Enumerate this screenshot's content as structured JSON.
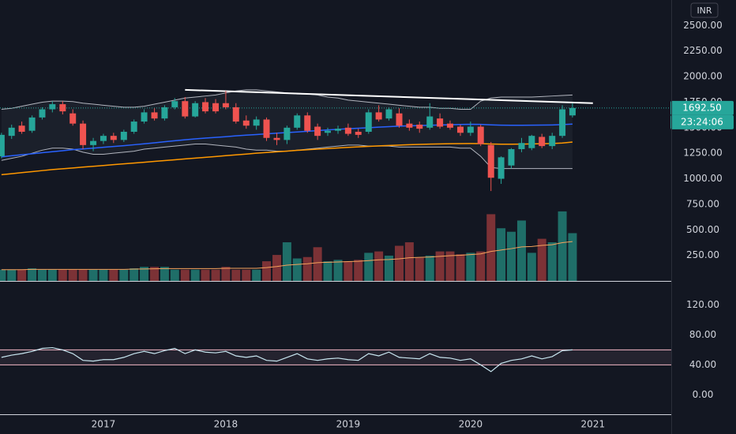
{
  "currency": "INR",
  "chart_data": [
    {
      "type": "candlestick",
      "x": [
        2016.167,
        2016.25,
        2016.333,
        2016.417,
        2016.5,
        2016.583,
        2016.667,
        2016.75,
        2016.833,
        2016.917,
        2017,
        2017.083,
        2017.167,
        2017.25,
        2017.333,
        2017.417,
        2017.5,
        2017.583,
        2017.667,
        2017.75,
        2017.833,
        2017.917,
        2018,
        2018.083,
        2018.167,
        2018.25,
        2018.333,
        2018.417,
        2018.5,
        2018.583,
        2018.667,
        2018.75,
        2018.833,
        2018.917,
        2019,
        2019.083,
        2019.167,
        2019.25,
        2019.333,
        2019.417,
        2019.5,
        2019.583,
        2019.667,
        2019.75,
        2019.833,
        2019.917,
        2020,
        2020.083,
        2020.167,
        2020.25,
        2020.333,
        2020.417,
        2020.5,
        2020.583,
        2020.667,
        2020.75,
        2020.833
      ],
      "open": [
        1220,
        1420,
        1520,
        1470,
        1600,
        1680,
        1730,
        1640,
        1540,
        1330,
        1370,
        1420,
        1380,
        1460,
        1560,
        1650,
        1590,
        1700,
        1760,
        1610,
        1750,
        1740,
        1740,
        1700,
        1570,
        1520,
        1580,
        1400,
        1380,
        1500,
        1620,
        1510,
        1450,
        1470,
        1500,
        1460,
        1460,
        1650,
        1590,
        1640,
        1540,
        1530,
        1500,
        1590,
        1540,
        1510,
        1450,
        1510,
        1330,
        1000,
        1130,
        1290,
        1300,
        1410,
        1320,
        1420,
        1620
      ],
      "high": [
        1450,
        1530,
        1560,
        1620,
        1700,
        1760,
        1760,
        1680,
        1570,
        1400,
        1440,
        1450,
        1480,
        1580,
        1680,
        1690,
        1720,
        1790,
        1800,
        1760,
        1790,
        1780,
        1860,
        1740,
        1620,
        1610,
        1600,
        1450,
        1520,
        1640,
        1650,
        1540,
        1500,
        1520,
        1540,
        1490,
        1680,
        1720,
        1700,
        1690,
        1580,
        1560,
        1740,
        1640,
        1570,
        1530,
        1560,
        1530,
        1360,
        1220,
        1300,
        1400,
        1430,
        1440,
        1450,
        1720,
        1740
      ],
      "low": [
        1200,
        1390,
        1440,
        1450,
        1580,
        1650,
        1630,
        1520,
        1290,
        1270,
        1340,
        1350,
        1360,
        1440,
        1540,
        1570,
        1570,
        1680,
        1590,
        1600,
        1640,
        1640,
        1680,
        1540,
        1490,
        1480,
        1370,
        1330,
        1340,
        1480,
        1450,
        1380,
        1420,
        1440,
        1420,
        1400,
        1440,
        1560,
        1570,
        1500,
        1470,
        1450,
        1480,
        1490,
        1480,
        1420,
        1420,
        1320,
        880,
        950,
        1100,
        1260,
        1280,
        1300,
        1290,
        1400,
        1600
      ],
      "close": [
        1430,
        1500,
        1460,
        1600,
        1680,
        1730,
        1660,
        1540,
        1330,
        1370,
        1420,
        1380,
        1460,
        1560,
        1650,
        1590,
        1700,
        1760,
        1610,
        1740,
        1660,
        1660,
        1700,
        1560,
        1520,
        1580,
        1400,
        1380,
        1500,
        1620,
        1470,
        1420,
        1470,
        1490,
        1440,
        1430,
        1650,
        1580,
        1680,
        1520,
        1500,
        1490,
        1610,
        1510,
        1500,
        1450,
        1510,
        1340,
        1010,
        1210,
        1290,
        1350,
        1420,
        1320,
        1420,
        1680,
        1692.5
      ],
      "volume": [
        16,
        16,
        16,
        18,
        16,
        16,
        16,
        16,
        16,
        16,
        16,
        16,
        16,
        18,
        20,
        20,
        20,
        16,
        16,
        16,
        16,
        16,
        20,
        16,
        16,
        16,
        28,
        37,
        55,
        32,
        34,
        48,
        28,
        30,
        28,
        30,
        40,
        42,
        36,
        50,
        55,
        33,
        36,
        42,
        42,
        38,
        40,
        42,
        95,
        75,
        70,
        86,
        40,
        60,
        55,
        99,
        68
      ],
      "volume_ylim": [
        0,
        400
      ],
      "volume_ma": {
        "color": "#f7a35c",
        "values": [
          16,
          16,
          16,
          16.5,
          16.5,
          16.5,
          16.5,
          16.5,
          16.5,
          16.5,
          16.5,
          16.5,
          16.5,
          16.8,
          17,
          17.3,
          17.6,
          17.6,
          17.6,
          17.6,
          17.6,
          17.6,
          18,
          18,
          18,
          18,
          19,
          20.5,
          22.5,
          23.5,
          24.5,
          26,
          26.5,
          27,
          27.5,
          28,
          29,
          30,
          30.5,
          31.5,
          33,
          33.5,
          34,
          35,
          36,
          36.5,
          37.5,
          38.5,
          42,
          44,
          46,
          48.5,
          49,
          50.5,
          51.5,
          54.5,
          56
        ]
      },
      "overlays": [
        {
          "color": "#2962ff",
          "values": [
            1215,
            1225,
            1235,
            1245,
            1255,
            1265,
            1275,
            1285,
            1292,
            1300,
            1308,
            1316,
            1324,
            1333,
            1342,
            1352,
            1362,
            1372,
            1382,
            1390,
            1398,
            1405,
            1412,
            1420,
            1427,
            1433,
            1440,
            1446,
            1452,
            1458,
            1465,
            1472,
            1478,
            1484,
            1490,
            1495,
            1500,
            1505,
            1510,
            1515,
            1518,
            1521,
            1524,
            1527,
            1529,
            1531,
            1533,
            1532,
            1528,
            1525,
            1524,
            1524,
            1525,
            1526,
            1527,
            1530,
            1535
          ]
        },
        {
          "color": "#ff9800",
          "values": [
            1040,
            1050,
            1060,
            1070,
            1080,
            1090,
            1098,
            1106,
            1114,
            1122,
            1130,
            1138,
            1146,
            1154,
            1162,
            1170,
            1178,
            1186,
            1194,
            1202,
            1210,
            1218,
            1226,
            1234,
            1242,
            1250,
            1257,
            1264,
            1271,
            1278,
            1284,
            1290,
            1296,
            1302,
            1307,
            1312,
            1317,
            1322,
            1326,
            1330,
            1333,
            1336,
            1339,
            1341,
            1343,
            1344,
            1345,
            1344,
            1340,
            1338,
            1338,
            1339,
            1341,
            1343,
            1345,
            1350,
            1360
          ]
        }
      ],
      "bands": {
        "color": "#b2b5be",
        "upper": [
          1680,
          1690,
          1710,
          1730,
          1750,
          1760,
          1760,
          1755,
          1740,
          1730,
          1720,
          1710,
          1700,
          1700,
          1710,
          1730,
          1750,
          1770,
          1790,
          1800,
          1810,
          1820,
          1840,
          1860,
          1870,
          1870,
          1860,
          1850,
          1840,
          1830,
          1830,
          1820,
          1800,
          1790,
          1770,
          1760,
          1750,
          1740,
          1730,
          1720,
          1710,
          1700,
          1700,
          1690,
          1690,
          1680,
          1680,
          1760,
          1790,
          1800,
          1800,
          1800,
          1800,
          1805,
          1810,
          1815,
          1820
        ],
        "lower": [
          1180,
          1200,
          1220,
          1250,
          1280,
          1300,
          1300,
          1290,
          1260,
          1240,
          1240,
          1250,
          1260,
          1270,
          1290,
          1300,
          1310,
          1320,
          1330,
          1340,
          1340,
          1330,
          1320,
          1310,
          1290,
          1280,
          1280,
          1270,
          1270,
          1280,
          1290,
          1300,
          1310,
          1320,
          1330,
          1330,
          1320,
          1320,
          1320,
          1310,
          1310,
          1310,
          1310,
          1310,
          1310,
          1300,
          1300,
          1220,
          1110,
          1100,
          1100,
          1100,
          1100,
          1100,
          1100,
          1100,
          1100
        ]
      },
      "trendline": {
        "color": "#ffffff",
        "x": [
          2017.667,
          2021.0
        ],
        "values": [
          1870,
          1740
        ]
      },
      "up_color": "#26a69a",
      "down_color": "#ef5350",
      "volume_up_color": "#1f6e68",
      "volume_down_color": "#7c3236",
      "xlim": [
        2016.155,
        2021.64
      ],
      "xticks": [
        2017,
        2018,
        2019,
        2020,
        2021
      ],
      "ylim": [
        0,
        2750
      ],
      "yticks": [
        {
          "value": 250,
          "label": "250.00"
        },
        {
          "value": 500,
          "label": "500.00"
        },
        {
          "value": 750,
          "label": "750.00"
        },
        {
          "value": 1000,
          "label": "1000.00"
        },
        {
          "value": 1250,
          "label": "1250.00"
        },
        {
          "value": 1500,
          "label": "1500.00"
        },
        {
          "value": 1750,
          "label": "1750.00"
        },
        {
          "value": 2000,
          "label": "2000.00"
        },
        {
          "value": 2250,
          "label": "2250.00"
        },
        {
          "value": 2500,
          "label": "2500.00"
        }
      ],
      "last_price": {
        "value": 1692.5,
        "label": "1692.50"
      },
      "countdown": "23:24:06",
      "grid": true
    },
    {
      "type": "line",
      "color": "#c8e6f0",
      "values": [
        50,
        53,
        55,
        58,
        62,
        63,
        60,
        55,
        46,
        45,
        47,
        47,
        50,
        55,
        58,
        55,
        59,
        62,
        55,
        60,
        57,
        56,
        58,
        52,
        50,
        52,
        46,
        45,
        50,
        55,
        48,
        46,
        48,
        49,
        47,
        46,
        55,
        52,
        57,
        50,
        49,
        48,
        55,
        50,
        49,
        46,
        48,
        40,
        31,
        42,
        46,
        48,
        52,
        48,
        51,
        59,
        60
      ],
      "band": [
        40,
        60
      ],
      "band_color": "#f5b8c8",
      "ylim": [
        -26,
        150
      ],
      "yticks": [
        {
          "value": 0,
          "label": "0.00"
        },
        {
          "value": 40,
          "label": "40.00"
        },
        {
          "value": 80,
          "label": "80.00"
        },
        {
          "value": 120,
          "label": "120.00"
        }
      ],
      "grid": true
    }
  ]
}
